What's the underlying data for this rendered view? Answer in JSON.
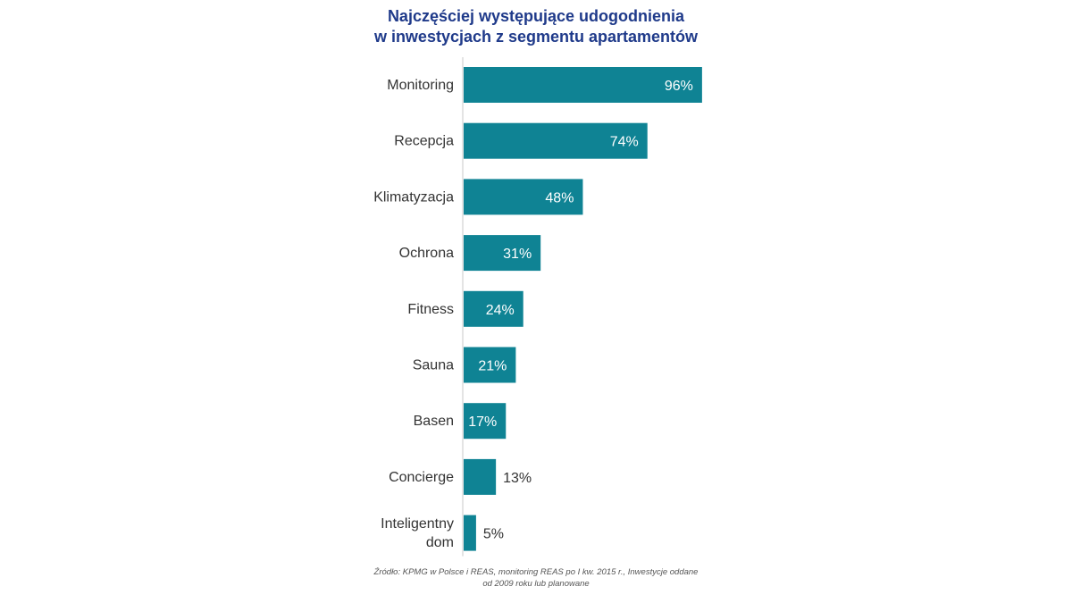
{
  "title": {
    "line1": "Najczęściej występujące udogodnienia",
    "line2": "w inwestycjach z segmentu apartamentów"
  },
  "source": {
    "line1": "Źródło: KPMG w Polsce i REAS, monitoring REAS po I kw. 2015 r., Inwestycje oddane",
    "line2": "od 2009 roku lub planowane"
  },
  "colors": {
    "bar": "#0f8394",
    "axis": "#c8c8c8",
    "title": "#1f3a8a"
  },
  "chart_data": {
    "type": "bar",
    "orientation": "horizontal",
    "title": "Najczęściej występujące udogodnienia w inwestycjach z segmentu apartamentów",
    "categories": [
      [
        "Monitoring"
      ],
      [
        "Recepcja"
      ],
      [
        "Klimatyzacja"
      ],
      [
        "Ochrona"
      ],
      [
        "Fitness"
      ],
      [
        "Sauna"
      ],
      [
        "Basen"
      ],
      [
        "Concierge"
      ],
      [
        "Inteligentny",
        "dom"
      ]
    ],
    "values": [
      96,
      74,
      48,
      31,
      24,
      21,
      17,
      13,
      5
    ],
    "value_labels": [
      "96%",
      "74%",
      "48%",
      "31%",
      "24%",
      "21%",
      "17%",
      "13%",
      "5%"
    ],
    "xlim": [
      0,
      100
    ],
    "grid": false,
    "legend": "none"
  }
}
